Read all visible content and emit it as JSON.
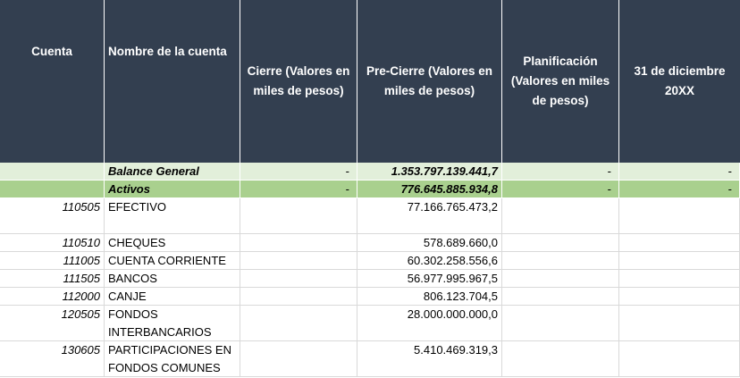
{
  "headers": {
    "cuenta": "Cuenta",
    "nombre": "Nombre de la cuenta",
    "cierre": "Cierre (Valores en miles de pesos)",
    "precierre": "Pre-Cierre (Valores en miles de pesos)",
    "planificacion": "Planificación (Valores en miles de pesos)",
    "fecha": "31 de diciembre 20XX"
  },
  "rows": {
    "balance": {
      "nombre": "Balance General",
      "cierre": "-",
      "precierre": "1.353.797.139.441,7",
      "planificacion": "-",
      "fecha": "-"
    },
    "activos": {
      "nombre": "Activos",
      "cierre": "-",
      "precierre": "776.645.885.934,8",
      "planificacion": "-",
      "fecha": "-"
    },
    "r1": {
      "cuenta": "110505",
      "nombre": "EFECTIVO",
      "precierre": "77.166.765.473,2"
    },
    "r2": {
      "cuenta": "110510",
      "nombre": "CHEQUES",
      "precierre": "578.689.660,0"
    },
    "r3": {
      "cuenta": "111005",
      "nombre": "CUENTA CORRIENTE",
      "precierre": "60.302.258.556,6"
    },
    "r4": {
      "cuenta": "111505",
      "nombre": "BANCOS",
      "precierre": "56.977.995.967,5"
    },
    "r5": {
      "cuenta": "112000",
      "nombre": "CANJE",
      "precierre": "806.123.704,5"
    },
    "r6": {
      "cuenta": "120505",
      "nombre": "FONDOS INTERBANCARIOS",
      "precierre": "28.000.000.000,0"
    },
    "r7": {
      "cuenta": "130605",
      "nombre": "PARTICIPACIONES EN FONDOS COMUNES",
      "precierre": "5.410.469.319,3"
    }
  }
}
